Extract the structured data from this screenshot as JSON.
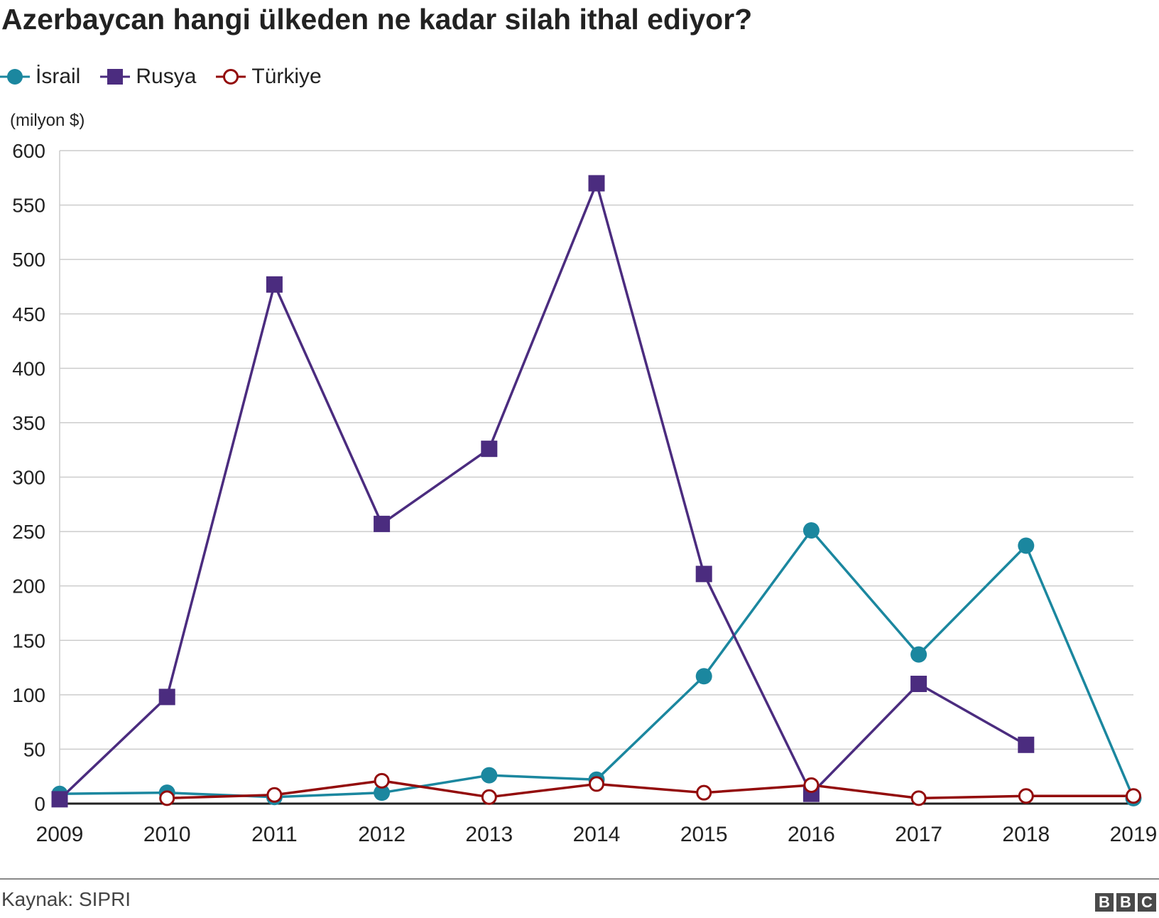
{
  "chart_data": {
    "type": "line",
    "title": "Azerbaycan hangi ülkeden ne kadar silah ithal ediyor?",
    "ylabel": "(milyon $)",
    "xlabel": "",
    "x": [
      "2009",
      "2010",
      "2011",
      "2012",
      "2013",
      "2014",
      "2015",
      "2016",
      "2017",
      "2018",
      "2019"
    ],
    "ylim": [
      0,
      600
    ],
    "yticks": [
      "0",
      "50",
      "100",
      "150",
      "200",
      "250",
      "300",
      "350",
      "400",
      "450",
      "500",
      "550",
      "600"
    ],
    "grid": true,
    "legend_position": "top-left",
    "series": [
      {
        "name": "İsrail",
        "color": "#1b879f",
        "marker": "filled-circle",
        "values": [
          9,
          10,
          6,
          10,
          26,
          22,
          117,
          251,
          137,
          237,
          5
        ]
      },
      {
        "name": "Rusya",
        "color": "#4b2c7f",
        "marker": "filled-square",
        "values": [
          4,
          98,
          477,
          257,
          326,
          570,
          211,
          9,
          110,
          54,
          null
        ]
      },
      {
        "name": "Türkiye",
        "color": "#930b0b",
        "marker": "hollow-circle",
        "values": [
          null,
          5,
          8,
          21,
          6,
          18,
          10,
          17,
          5,
          7,
          7
        ]
      }
    ]
  },
  "footer": {
    "source": "Kaynak: SIPRI",
    "logo_letters": [
      "B",
      "B",
      "C"
    ]
  }
}
